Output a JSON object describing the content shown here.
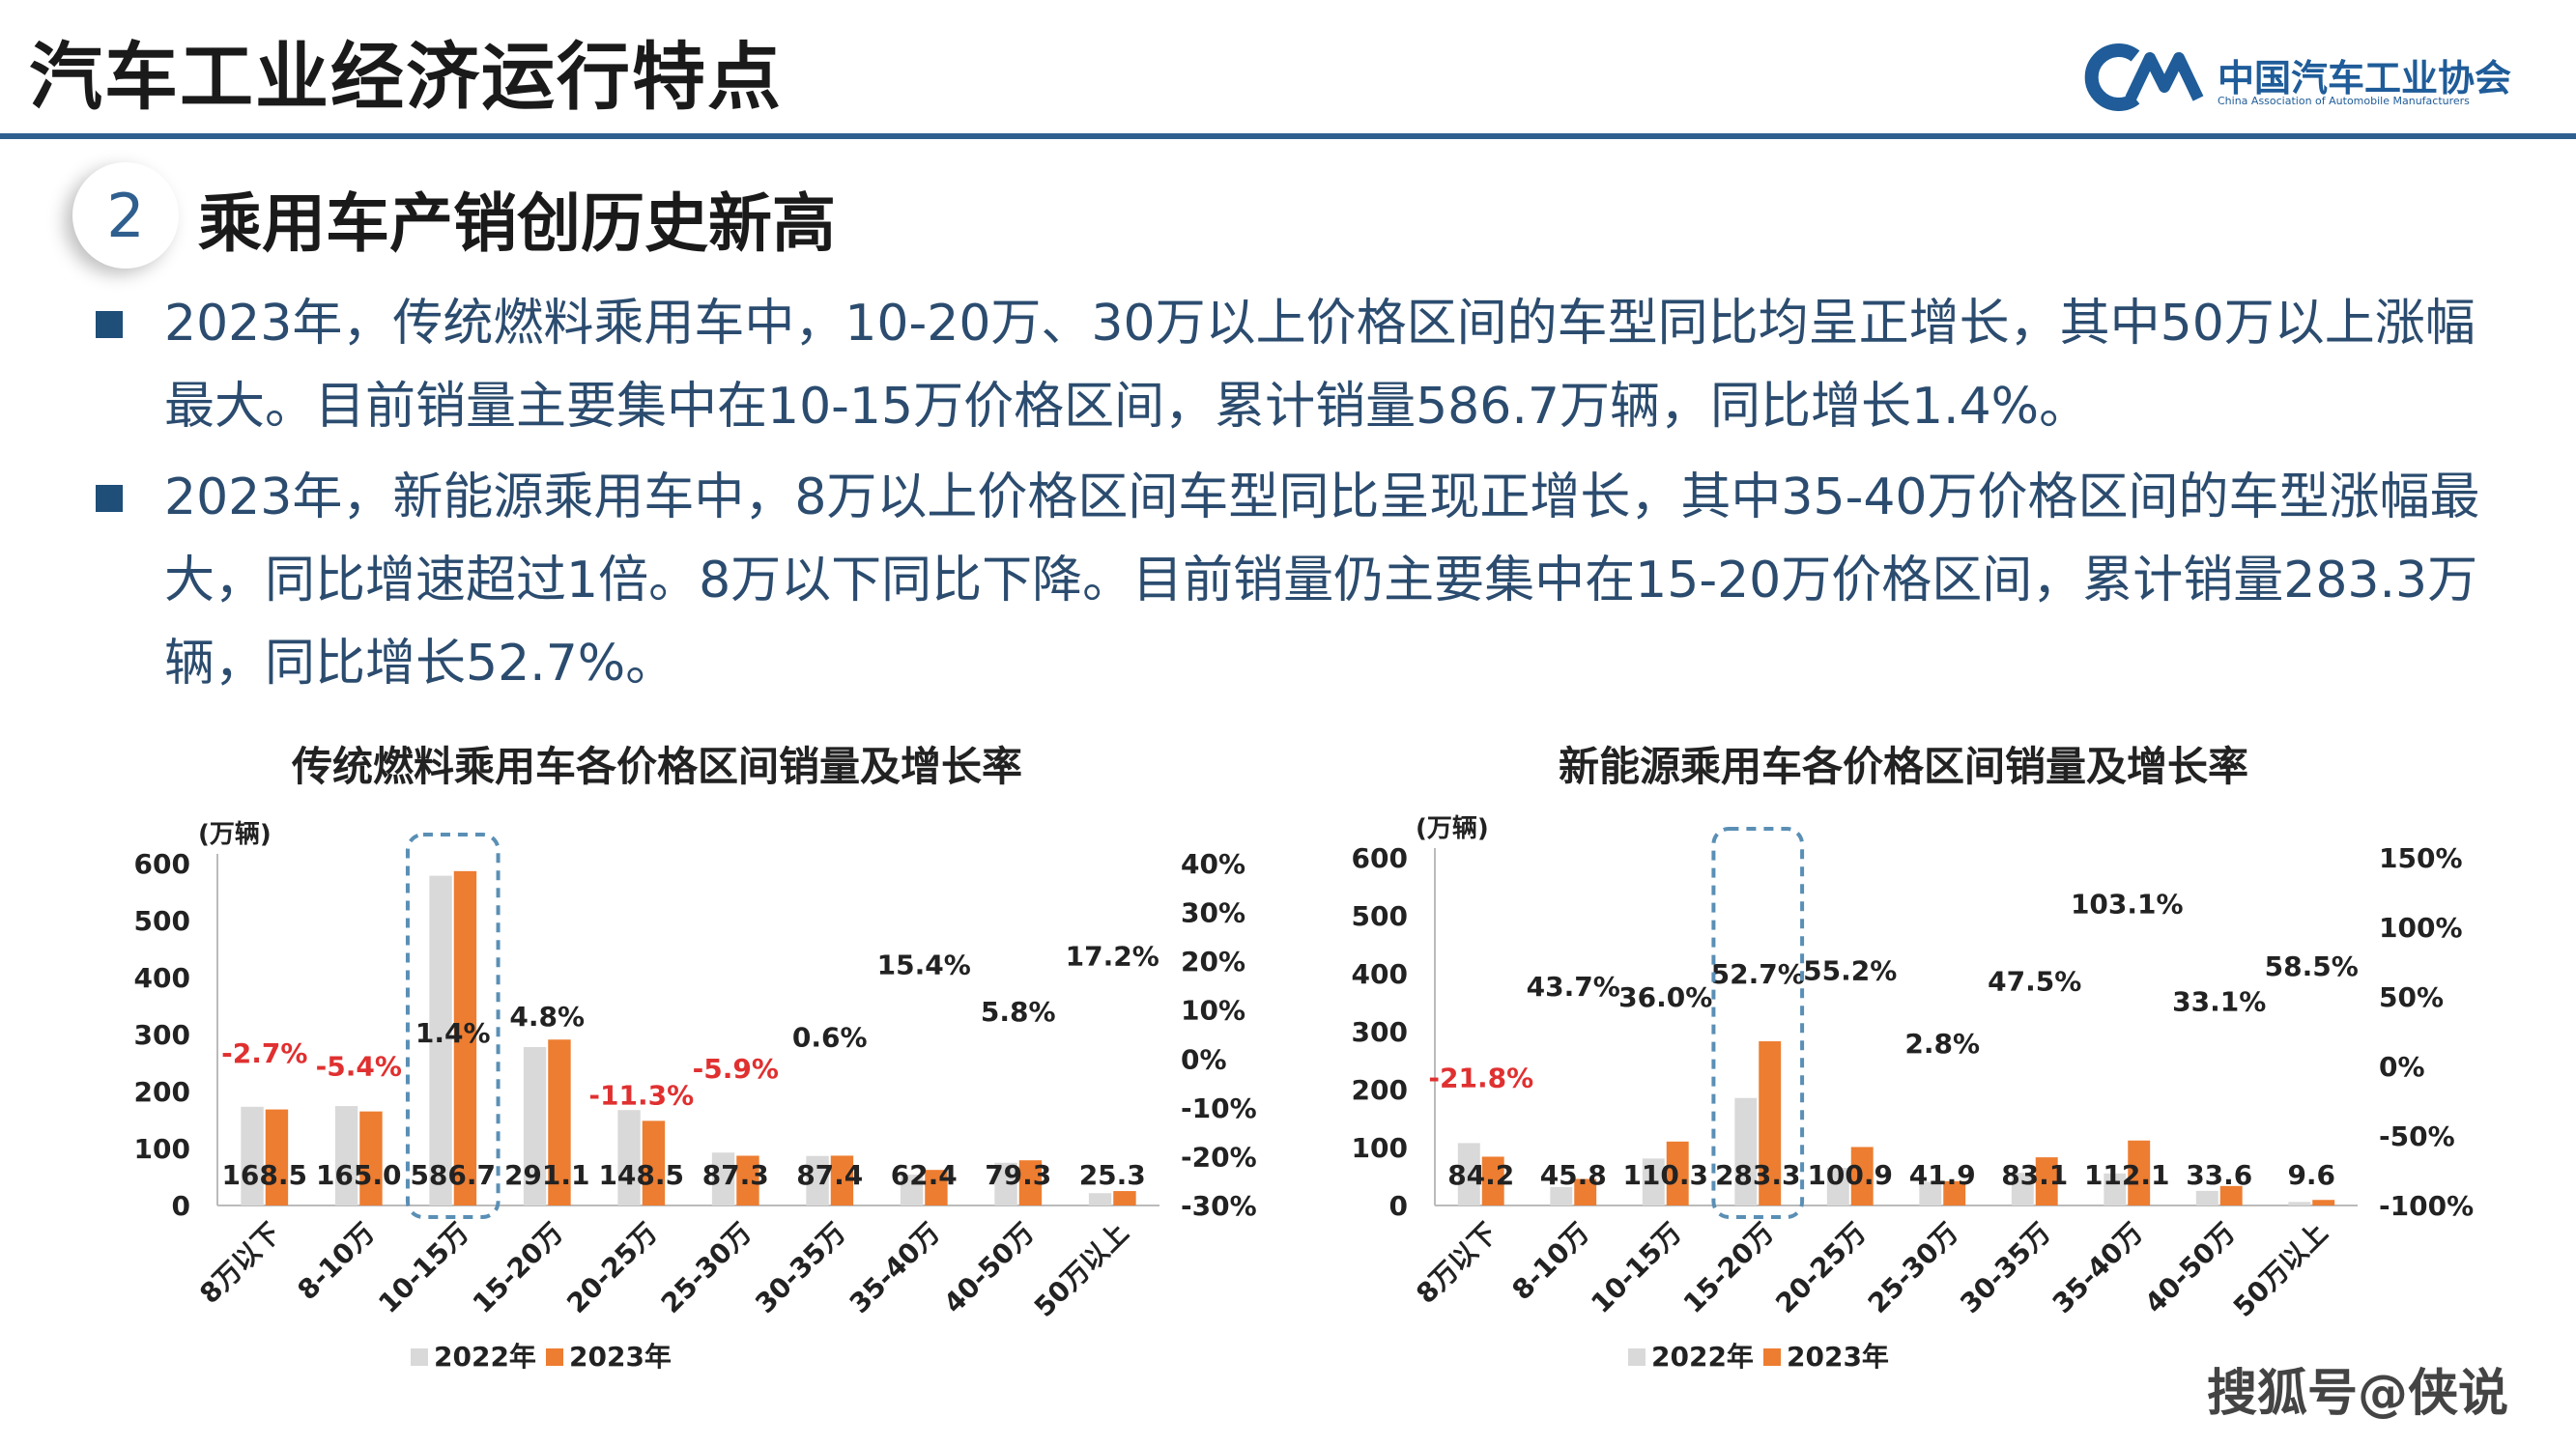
{
  "header": {
    "title": "汽车工业经济运行特点",
    "logo_cn": "中国汽车工业协会",
    "logo_en": "China Association of Automobile Manufacturers"
  },
  "section": {
    "number": "2",
    "title": "乘用车产销创历史新高"
  },
  "bullets": [
    "2023年，传统燃料乘用车中，10-20万、30万以上价格区间的车型同比均呈正增长，其中50万以上涨幅最大。目前销量主要集中在10-15万价格区间，累计销量586.7万辆，同比增长1.4%。",
    "2023年，新能源乘用车中，8万以上价格区间车型同比呈现正增长，其中35-40万价格区间的车型涨幅最大，同比增速超过1倍。8万以下同比下降。目前销量仍主要集中在15-20万价格区间，累计销量283.3万辆，同比增长52.7%。"
  ],
  "watermark": "搜狐号@侠说",
  "colors": {
    "s2022": "#d9d9d9",
    "s2023": "#ed7d31",
    "negative": "#e03030",
    "highlight": "#5a8fb5"
  },
  "chart_data": [
    {
      "type": "bar",
      "title": "传统燃料乘用车各价格区间销量及增长率",
      "ylabel": "(万辆)",
      "categories": [
        "8万以下",
        "8-10万",
        "10-15万",
        "15-20万",
        "20-25万",
        "25-30万",
        "30-35万",
        "35-40万",
        "40-50万",
        "50万以上"
      ],
      "series": [
        {
          "name": "2022年",
          "values": [
            173.2,
            174.4,
            578.6,
            278.0,
            167.4,
            92.8,
            86.9,
            54.1,
            75.0,
            21.6
          ]
        },
        {
          "name": "2023年",
          "values": [
            168.5,
            165.0,
            586.7,
            291.1,
            148.5,
            87.3,
            87.4,
            62.4,
            79.3,
            25.3
          ]
        }
      ],
      "data_labels": [
        "168.5",
        "165.0",
        "586.7",
        "291.1",
        "148.5",
        "87.3",
        "87.4",
        "62.4",
        "79.3",
        "25.3"
      ],
      "growth": [
        -2.7,
        -5.4,
        1.4,
        4.8,
        -11.3,
        -5.9,
        0.6,
        15.4,
        5.8,
        17.2
      ],
      "growth_labels": [
        "-2.7%",
        "-5.4%",
        "1.4%",
        "4.8%",
        "-11.3%",
        "-5.9%",
        "0.6%",
        "15.4%",
        "5.8%",
        "17.2%"
      ],
      "ylim": [
        0,
        600
      ],
      "yticks": [
        "0",
        "100",
        "200",
        "300",
        "400",
        "500",
        "600"
      ],
      "y2lim": [
        -30,
        40
      ],
      "y2ticks": [
        "-30%",
        "-20%",
        "-10%",
        "0%",
        "10%",
        "20%",
        "30%",
        "40%"
      ],
      "highlight_index": 2,
      "legend": [
        "2022年",
        "2023年"
      ]
    },
    {
      "type": "bar",
      "title": "新能源乘用车各价格区间销量及增长率",
      "ylabel": "(万辆)",
      "categories": [
        "8万以下",
        "8-10万",
        "10-15万",
        "15-20万",
        "20-25万",
        "25-30万",
        "30-35万",
        "35-40万",
        "40-50万",
        "50万以上"
      ],
      "series": [
        {
          "name": "2022年",
          "values": [
            107.7,
            31.9,
            81.0,
            185.5,
            65.0,
            40.8,
            56.4,
            55.2,
            25.2,
            6.1
          ]
        },
        {
          "name": "2023年",
          "values": [
            84.2,
            45.8,
            110.3,
            283.3,
            100.9,
            41.9,
            83.1,
            112.1,
            33.6,
            9.6
          ]
        }
      ],
      "data_labels": [
        "84.2",
        "45.8",
        "110.3",
        "283.3",
        "100.9",
        "41.9",
        "83.1",
        "112.1",
        "33.6",
        "9.6"
      ],
      "growth": [
        -21.8,
        43.7,
        36.0,
        52.7,
        55.2,
        2.8,
        47.5,
        103.1,
        33.1,
        58.5
      ],
      "growth_labels": [
        "-21.8%",
        "43.7%",
        "36.0%",
        "52.7%",
        "55.2%",
        "2.8%",
        "47.5%",
        "103.1%",
        "33.1%",
        "58.5%"
      ],
      "ylim": [
        0,
        600
      ],
      "yticks": [
        "0",
        "100",
        "200",
        "300",
        "400",
        "500",
        "600"
      ],
      "y2lim": [
        -100,
        150
      ],
      "y2ticks": [
        "-100%",
        "-50%",
        "0%",
        "50%",
        "100%",
        "150%"
      ],
      "highlight_index": 3,
      "legend": [
        "2022年",
        "2023年"
      ]
    }
  ]
}
